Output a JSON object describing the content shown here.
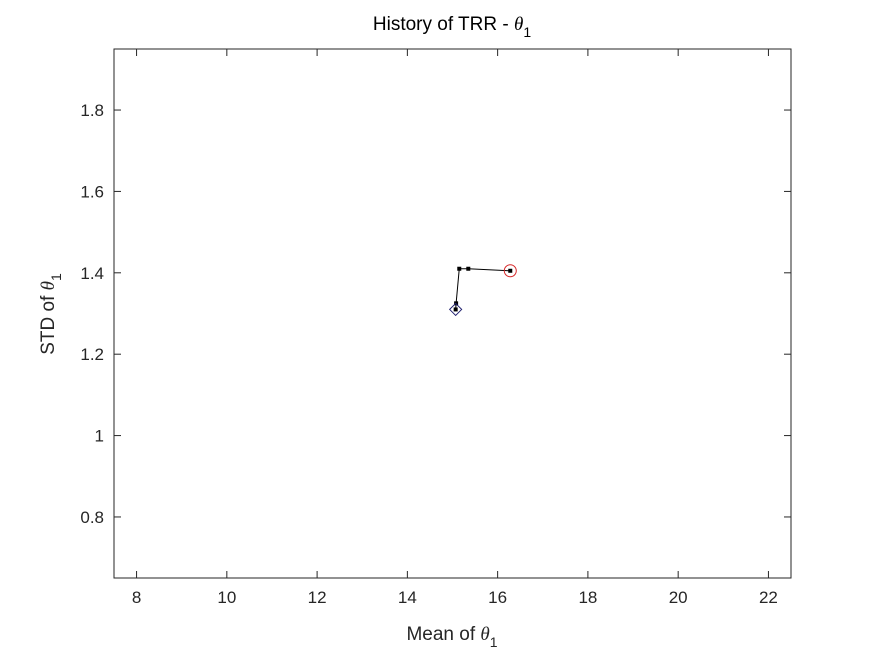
{
  "chart_data": {
    "type": "line",
    "title": {
      "text": "History of TRR - ",
      "symbol": "θ",
      "subscript": "1"
    },
    "xlabel": {
      "text": "Mean of ",
      "symbol": "θ",
      "subscript": "1"
    },
    "ylabel": {
      "text": "STD of ",
      "symbol": "θ",
      "subscript": "1"
    },
    "xlim": [
      7.5,
      22.5
    ],
    "ylim": [
      0.65,
      1.95
    ],
    "xticks": [
      8,
      10,
      12,
      14,
      16,
      18,
      20,
      22
    ],
    "yticks": [
      0.8,
      1,
      1.2,
      1.4,
      1.6,
      1.8
    ],
    "xtick_labels": [
      "8",
      "10",
      "12",
      "14",
      "16",
      "18",
      "20",
      "22"
    ],
    "ytick_labels": [
      "0.8",
      "1",
      "1.2",
      "1.4",
      "1.6",
      "1.8"
    ],
    "grid": false,
    "box": true,
    "series": [
      {
        "x": [
          16.28,
          15.35,
          15.15,
          15.08,
          15.07
        ],
        "y": [
          1.405,
          1.41,
          1.41,
          1.325,
          1.31
        ],
        "color": "#000000",
        "marker": "square"
      }
    ],
    "start_marker": {
      "x": 16.28,
      "y": 1.405,
      "shape": "circle",
      "color": "#d62728"
    },
    "end_marker": {
      "x": 15.07,
      "y": 1.31,
      "shape": "diamond",
      "color": "#1f1f6e"
    }
  }
}
